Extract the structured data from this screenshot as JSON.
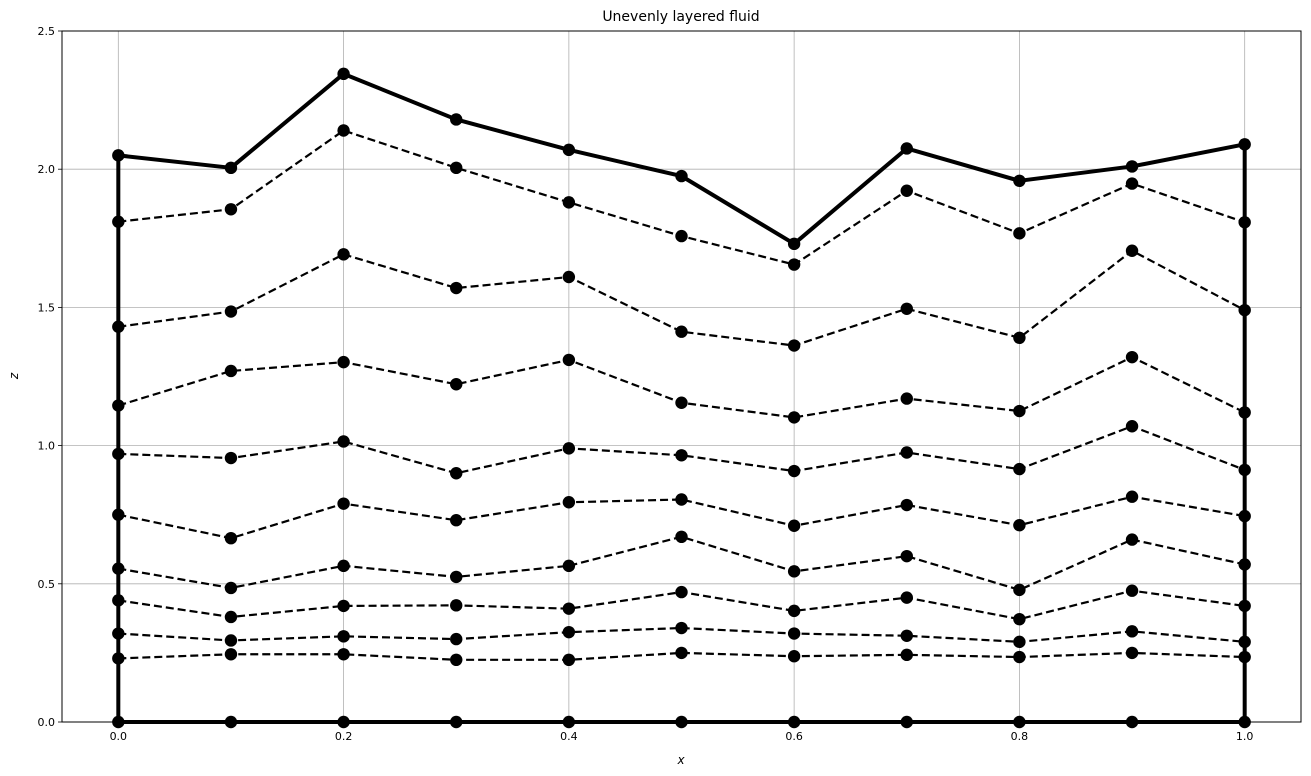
{
  "chart_data": {
    "type": "line",
    "title": "Unevenly layered fluid",
    "xlabel": "x",
    "ylabel": "z",
    "xlim": [
      -0.05,
      1.05
    ],
    "ylim": [
      0.0,
      2.5
    ],
    "grid": true,
    "x_ticks": [
      "0.0",
      "0.2",
      "0.4",
      "0.6",
      "0.8",
      "1.0"
    ],
    "y_ticks": [
      "0.0",
      "0.5",
      "1.0",
      "1.5",
      "2.0",
      "2.5"
    ],
    "x": [
      0.0,
      0.1,
      0.2,
      0.3,
      0.4,
      0.5,
      0.6,
      0.7,
      0.8,
      0.9,
      1.0
    ],
    "colors": {
      "line": "#000000",
      "grid": "#b0b0b0",
      "frame": "#000000"
    },
    "layers": [
      {
        "style": "solid",
        "values": [
          0.0,
          0.0,
          0.0,
          0.0,
          0.0,
          0.0,
          0.0,
          0.0,
          0.0,
          0.0,
          0.0
        ]
      },
      {
        "style": "dashed",
        "values": [
          0.23,
          0.245,
          0.245,
          0.225,
          0.225,
          0.25,
          0.238,
          0.243,
          0.235,
          0.25,
          0.235
        ]
      },
      {
        "style": "dashed",
        "values": [
          0.32,
          0.295,
          0.31,
          0.3,
          0.325,
          0.34,
          0.32,
          0.312,
          0.29,
          0.328,
          0.29
        ]
      },
      {
        "style": "dashed",
        "values": [
          0.44,
          0.38,
          0.42,
          0.422,
          0.41,
          0.47,
          0.402,
          0.45,
          0.372,
          0.475,
          0.42
        ]
      },
      {
        "style": "dashed",
        "values": [
          0.555,
          0.485,
          0.565,
          0.525,
          0.565,
          0.67,
          0.545,
          0.6,
          0.478,
          0.66,
          0.57
        ]
      },
      {
        "style": "dashed",
        "values": [
          0.75,
          0.665,
          0.79,
          0.73,
          0.795,
          0.805,
          0.71,
          0.785,
          0.712,
          0.815,
          0.745
        ]
      },
      {
        "style": "dashed",
        "values": [
          0.97,
          0.955,
          1.015,
          0.9,
          0.99,
          0.965,
          0.908,
          0.975,
          0.915,
          1.07,
          0.912
        ]
      },
      {
        "style": "dashed",
        "values": [
          1.145,
          1.27,
          1.302,
          1.222,
          1.31,
          1.155,
          1.102,
          1.17,
          1.125,
          1.32,
          1.12
        ]
      },
      {
        "style": "dashed",
        "values": [
          1.43,
          1.485,
          1.692,
          1.57,
          1.61,
          1.412,
          1.362,
          1.495,
          1.39,
          1.705,
          1.49
        ]
      },
      {
        "style": "dashed",
        "values": [
          1.81,
          1.855,
          2.14,
          2.005,
          1.88,
          1.758,
          1.655,
          1.922,
          1.768,
          1.948,
          1.808
        ]
      },
      {
        "style": "solid",
        "values": [
          2.05,
          2.005,
          2.345,
          2.18,
          2.07,
          1.975,
          1.73,
          2.075,
          1.958,
          2.01,
          2.09
        ]
      }
    ],
    "walls": [
      {
        "x": 0.0,
        "from": 0.0,
        "to": 2.05
      },
      {
        "x": 1.0,
        "from": 0.0,
        "to": 2.09
      }
    ]
  }
}
